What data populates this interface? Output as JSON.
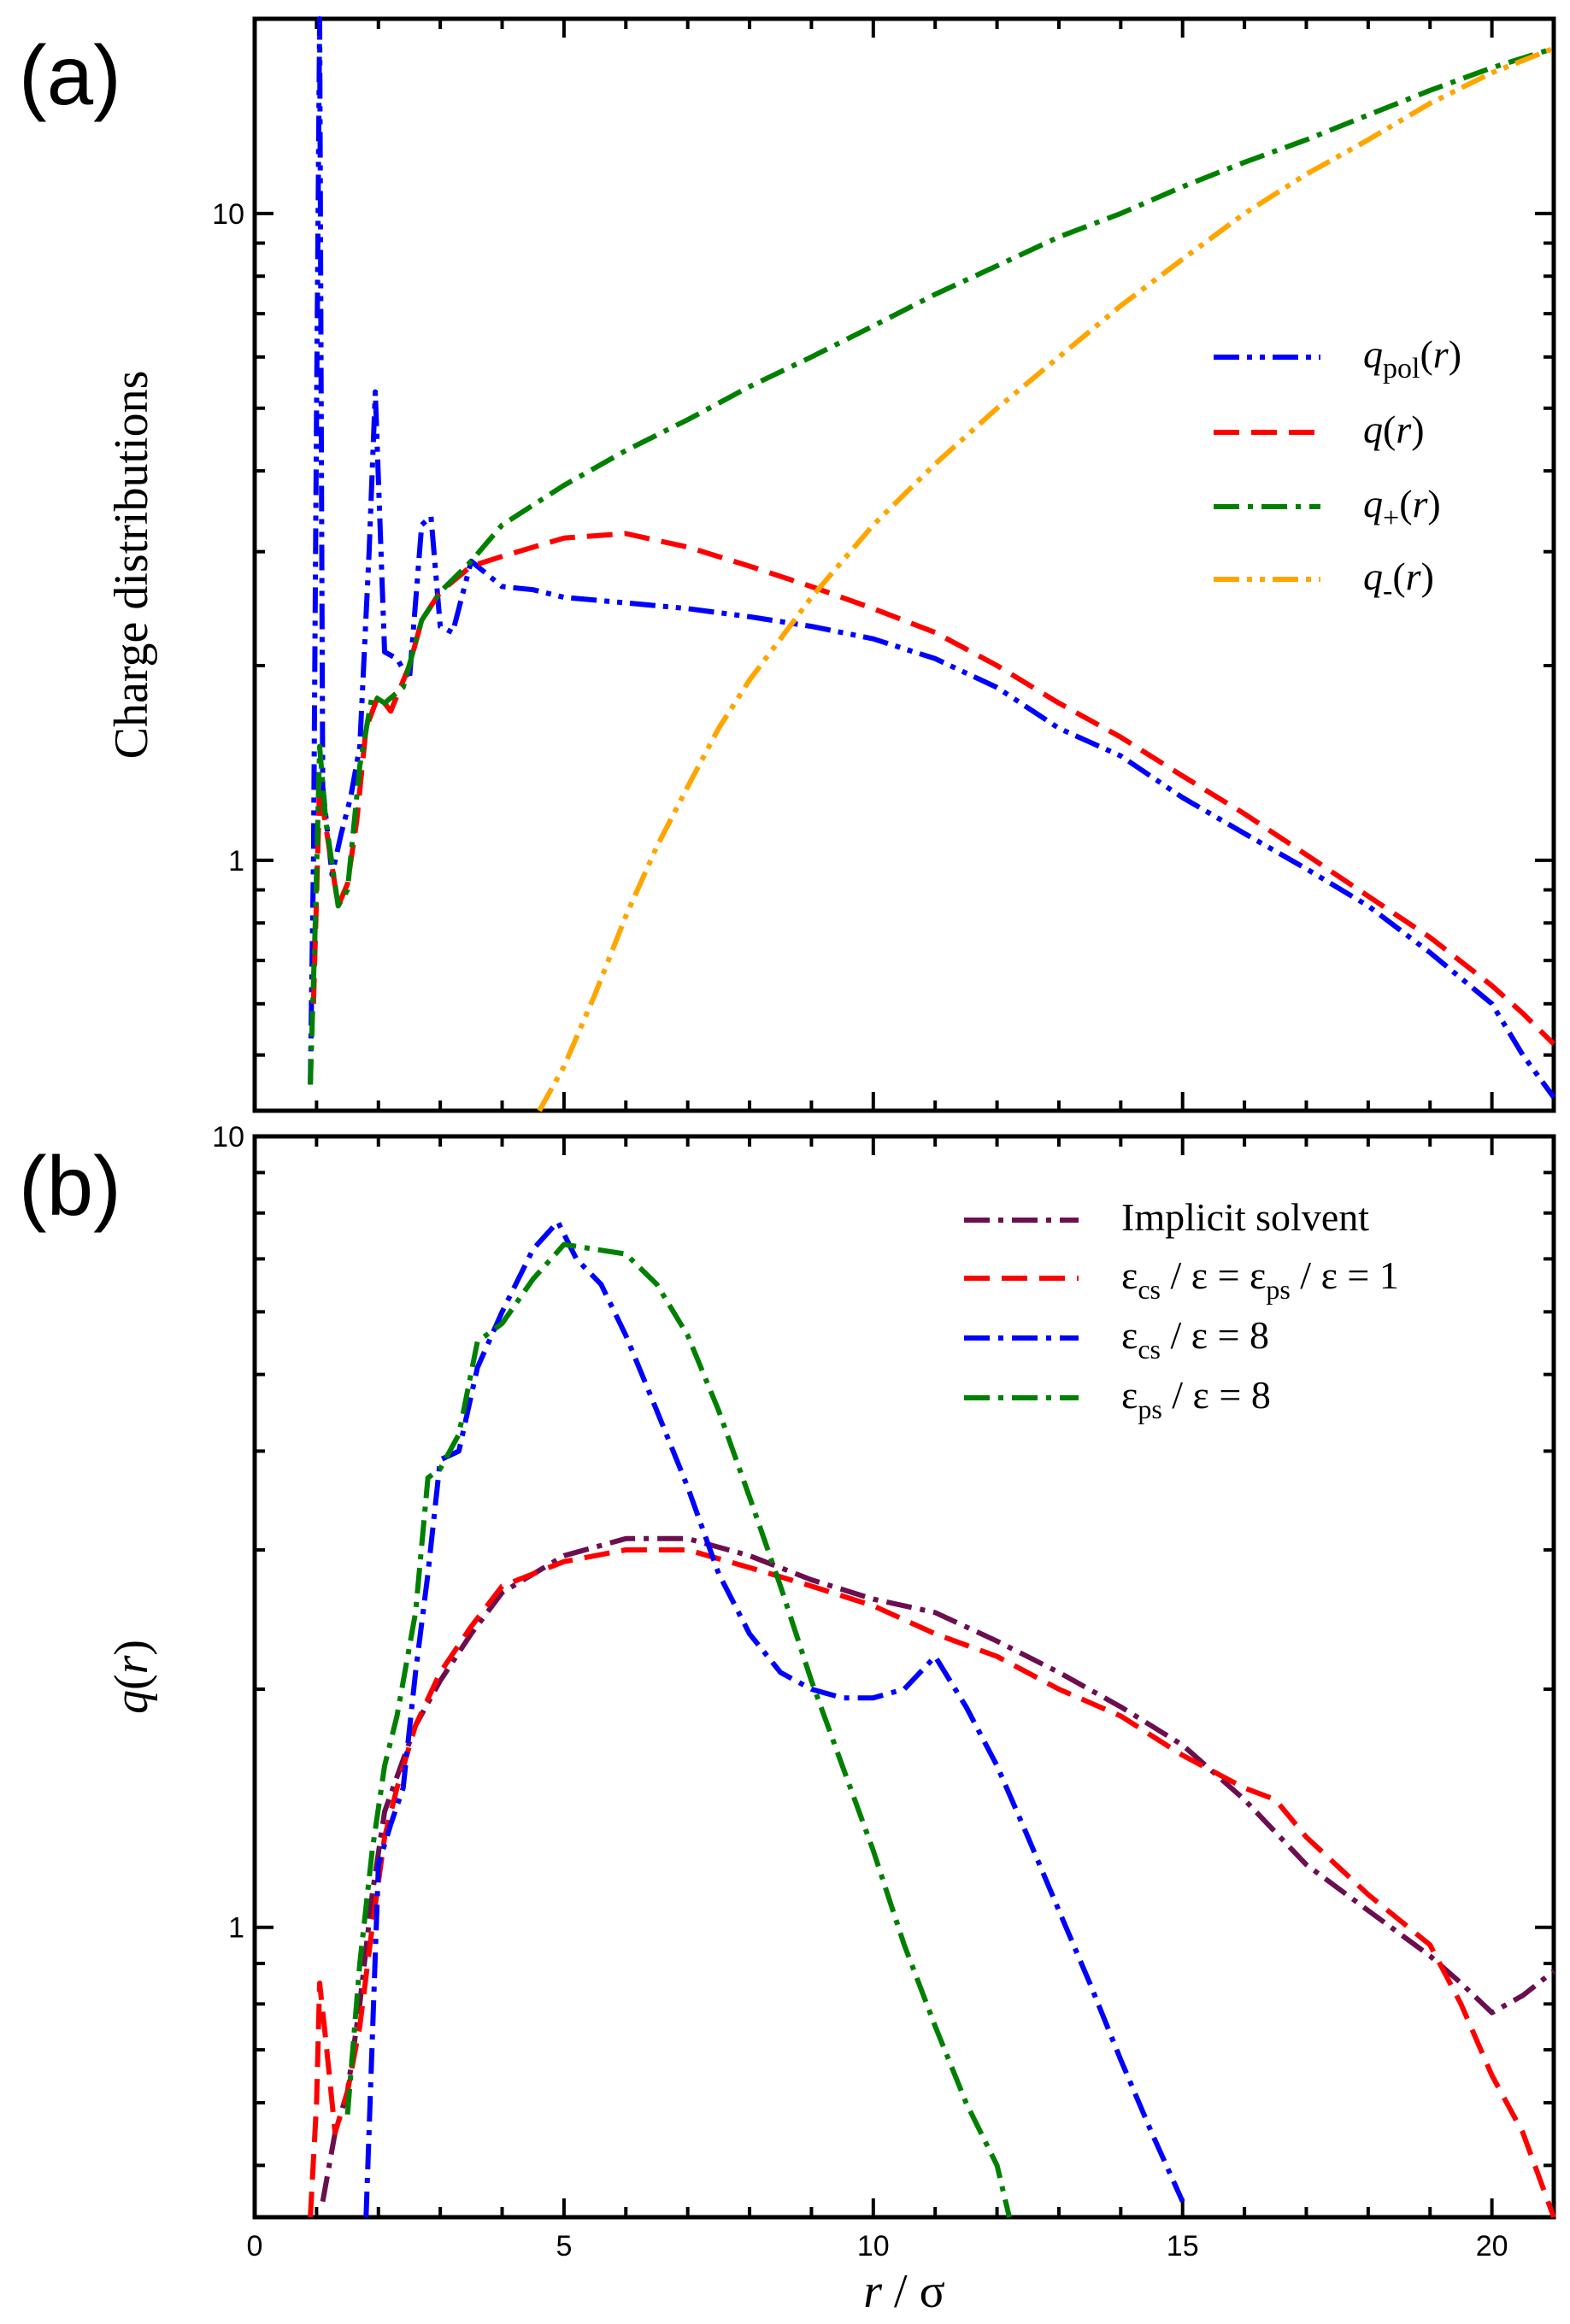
{
  "figure": {
    "panel_labels": [
      "(a)",
      "(b)"
    ],
    "x_tick_labels": [
      "0",
      "5",
      "10",
      "15",
      "20"
    ],
    "x_title": {
      "var": "r",
      "sep": " / ",
      "unit": "σ"
    }
  },
  "colors": {
    "blue": "#0000ff",
    "red": "#ff0000",
    "green": "#008000",
    "orange": "#ffa500",
    "maroon": "#6b0f4f"
  },
  "chart_data": [
    {
      "type": "line",
      "panel": "(a)",
      "ylabel": "Charge distributions",
      "xlabel": "r / σ",
      "xlim": [
        0,
        21
      ],
      "ylim": [
        0.41,
        20
      ],
      "yscale": "log",
      "y_ticks": [
        1,
        10
      ],
      "y_tick_labels": [
        "1",
        "10"
      ],
      "grid": false,
      "legend_position": "upper-right",
      "series": [
        {
          "name": "qpol(r)",
          "legend": {
            "base": "q",
            "sub": "pol",
            "arg": "(r)"
          },
          "color": "#0000ff",
          "dash": "dash-dot-dot",
          "x": [
            0.9,
            0.95,
            1.0,
            1.05,
            1.1,
            1.25,
            1.4,
            1.55,
            1.7,
            1.85,
            1.95,
            2.1,
            2.3,
            2.5,
            2.7,
            2.85,
            3.0,
            3.2,
            3.5,
            4,
            4.5,
            5,
            6,
            7,
            8,
            9,
            10,
            11,
            12,
            13,
            14,
            15,
            16,
            17,
            18,
            19,
            20,
            20.5,
            21
          ],
          "y": [
            0.45,
            1.0,
            5.0,
            20.0,
            1.3,
            0.95,
            1.1,
            1.25,
            1.5,
            3.0,
            5.3,
            2.1,
            2.05,
            1.9,
            3.3,
            3.4,
            2.3,
            2.25,
            2.9,
            2.65,
            2.62,
            2.55,
            2.5,
            2.45,
            2.38,
            2.3,
            2.2,
            2.05,
            1.85,
            1.6,
            1.45,
            1.25,
            1.1,
            0.97,
            0.85,
            0.72,
            0.6,
            0.5,
            0.43
          ]
        },
        {
          "name": "q(r)",
          "legend": {
            "base": "q",
            "sub": "",
            "arg": "(r)"
          },
          "color": "#ff0000",
          "dash": "dashed",
          "x": [
            0.95,
            1.05,
            1.2,
            1.35,
            1.5,
            1.65,
            1.8,
            2.0,
            2.2,
            2.5,
            2.7,
            3.0,
            3.5,
            4,
            5,
            6,
            7,
            8,
            9,
            10,
            11,
            12,
            13,
            14,
            15,
            16,
            17,
            18,
            19,
            20,
            20.5,
            21
          ],
          "y": [
            0.6,
            1.3,
            1.05,
            0.85,
            0.92,
            1.15,
            1.6,
            1.8,
            1.7,
            2.0,
            2.35,
            2.6,
            2.85,
            2.95,
            3.15,
            3.2,
            3.05,
            2.85,
            2.65,
            2.45,
            2.25,
            2.0,
            1.75,
            1.55,
            1.35,
            1.18,
            1.02,
            0.88,
            0.76,
            0.64,
            0.58,
            0.52
          ]
        },
        {
          "name": "q+(r)",
          "legend": {
            "base": "q",
            "sub": "+",
            "arg": "(r)"
          },
          "color": "#008000",
          "dash": "dash-dot",
          "x": [
            0.9,
            0.98,
            1.05,
            1.15,
            1.35,
            1.5,
            1.7,
            1.9,
            2.1,
            2.4,
            2.7,
            3.0,
            3.5,
            4,
            5,
            6,
            7,
            8,
            9,
            10,
            11,
            12,
            13,
            14,
            15,
            16,
            17,
            18,
            19,
            20,
            21
          ],
          "y": [
            0.45,
            0.8,
            1.5,
            1.15,
            0.85,
            0.9,
            1.4,
            1.8,
            1.75,
            1.85,
            2.35,
            2.6,
            2.9,
            3.3,
            3.8,
            4.3,
            4.8,
            5.4,
            6.0,
            6.7,
            7.5,
            8.3,
            9.2,
            10.0,
            11.0,
            12.0,
            13.0,
            14.2,
            15.5,
            16.8,
            18.0
          ]
        },
        {
          "name": "q-(r)",
          "legend": {
            "base": "q",
            "sub": "-",
            "arg": "(r)"
          },
          "color": "#ffa500",
          "dash": "dash-dot-dot",
          "x": [
            4.6,
            5,
            5.5,
            6,
            6.5,
            7,
            7.5,
            8,
            8.5,
            9,
            10,
            11,
            12,
            13,
            14,
            15,
            16,
            17,
            18,
            19,
            20,
            21
          ],
          "y": [
            0.41,
            0.48,
            0.62,
            0.82,
            1.05,
            1.3,
            1.6,
            1.9,
            2.2,
            2.55,
            3.3,
            4.1,
            5.0,
            6.0,
            7.2,
            8.5,
            10.0,
            11.5,
            13.0,
            14.8,
            16.5,
            18.0
          ]
        }
      ]
    },
    {
      "type": "line",
      "panel": "(b)",
      "ylabel": "q(r)",
      "xlabel": "r / σ",
      "xlim": [
        0,
        21
      ],
      "ylim": [
        0.43,
        10
      ],
      "yscale": "log",
      "y_ticks": [
        1,
        10
      ],
      "y_tick_labels": [
        "1",
        "10"
      ],
      "grid": false,
      "legend_position": "upper-right",
      "series": [
        {
          "name": "Implicit solvent",
          "legend": {
            "kind": "plain",
            "text": "Implicit solvent"
          },
          "color": "#6b0f4f",
          "dash": "dash-dot",
          "x": [
            1.1,
            1.3,
            1.5,
            1.7,
            1.9,
            2.1,
            2.3,
            2.6,
            3.0,
            3.5,
            4,
            5,
            6,
            7,
            8,
            9,
            10,
            11,
            12,
            13,
            14,
            15,
            16,
            17,
            18,
            19,
            19.5,
            20,
            20.5,
            21
          ],
          "y": [
            0.45,
            0.55,
            0.62,
            0.8,
            1.1,
            1.4,
            1.55,
            1.8,
            2.05,
            2.35,
            2.65,
            2.95,
            3.1,
            3.1,
            2.95,
            2.75,
            2.6,
            2.5,
            2.3,
            2.1,
            1.9,
            1.7,
            1.45,
            1.2,
            1.05,
            0.92,
            0.85,
            0.78,
            0.82,
            0.88
          ]
        },
        {
          "name": "εcs / ε = εps / ε = 1",
          "legend": {
            "kind": "eq1"
          },
          "color": "#ff0000",
          "dash": "dashed",
          "x": [
            0.9,
            1.0,
            1.05,
            1.15,
            1.3,
            1.5,
            1.7,
            1.9,
            2.1,
            2.3,
            2.6,
            3.0,
            3.5,
            4,
            5,
            6,
            7,
            8,
            9,
            10,
            11,
            12,
            13,
            14,
            15,
            16,
            16.5,
            17,
            18,
            19,
            19.5,
            20,
            20.5,
            21
          ],
          "y": [
            0.43,
            0.6,
            0.85,
            0.72,
            0.55,
            0.62,
            0.75,
            1.0,
            1.3,
            1.5,
            1.8,
            2.1,
            2.4,
            2.7,
            2.9,
            3.0,
            3.0,
            2.85,
            2.7,
            2.55,
            2.35,
            2.2,
            2.0,
            1.85,
            1.65,
            1.5,
            1.45,
            1.3,
            1.1,
            0.95,
            0.8,
            0.65,
            0.55,
            0.43
          ]
        },
        {
          "name": "εcs / ε = 8",
          "legend": {
            "kind": "eq8",
            "sub": "cs"
          },
          "color": "#0000ff",
          "dash": "dash-dot",
          "x": [
            1.8,
            2.0,
            2.2,
            2.4,
            2.6,
            2.8,
            3.0,
            3.3,
            3.6,
            4.0,
            4.5,
            4.9,
            5.2,
            5.6,
            6,
            6.5,
            7,
            7.5,
            8,
            8.5,
            9,
            9.5,
            10,
            10.5,
            11,
            11.5,
            12,
            12.5,
            13,
            13.5,
            14,
            14.5,
            15
          ],
          "y": [
            0.43,
            1.2,
            1.35,
            1.5,
            2.1,
            2.8,
            3.9,
            4.0,
            5.1,
            6.0,
            7.2,
            7.8,
            7.0,
            6.5,
            5.6,
            4.5,
            3.6,
            2.8,
            2.35,
            2.1,
            2.0,
            1.95,
            1.95,
            2.0,
            2.2,
            1.9,
            1.6,
            1.3,
            1.05,
            0.85,
            0.68,
            0.55,
            0.45
          ]
        },
        {
          "name": "εps / ε = 8",
          "legend": {
            "kind": "eq8",
            "sub": "ps"
          },
          "color": "#008000",
          "dash": "dash-dot",
          "x": [
            1.5,
            1.7,
            1.9,
            2.1,
            2.3,
            2.6,
            2.8,
            3.0,
            3.3,
            3.6,
            4.0,
            4.5,
            5.0,
            5.5,
            6,
            6.5,
            7,
            7.5,
            8,
            8.5,
            9,
            9.5,
            10,
            10.5,
            11,
            11.5,
            12,
            12.2
          ],
          "y": [
            0.58,
            0.9,
            1.25,
            1.6,
            1.85,
            2.5,
            3.7,
            3.8,
            4.2,
            5.5,
            5.8,
            6.6,
            7.3,
            7.2,
            7.1,
            6.5,
            5.6,
            4.5,
            3.5,
            2.7,
            2.05,
            1.6,
            1.25,
            0.95,
            0.75,
            0.6,
            0.5,
            0.43
          ]
        }
      ]
    }
  ]
}
